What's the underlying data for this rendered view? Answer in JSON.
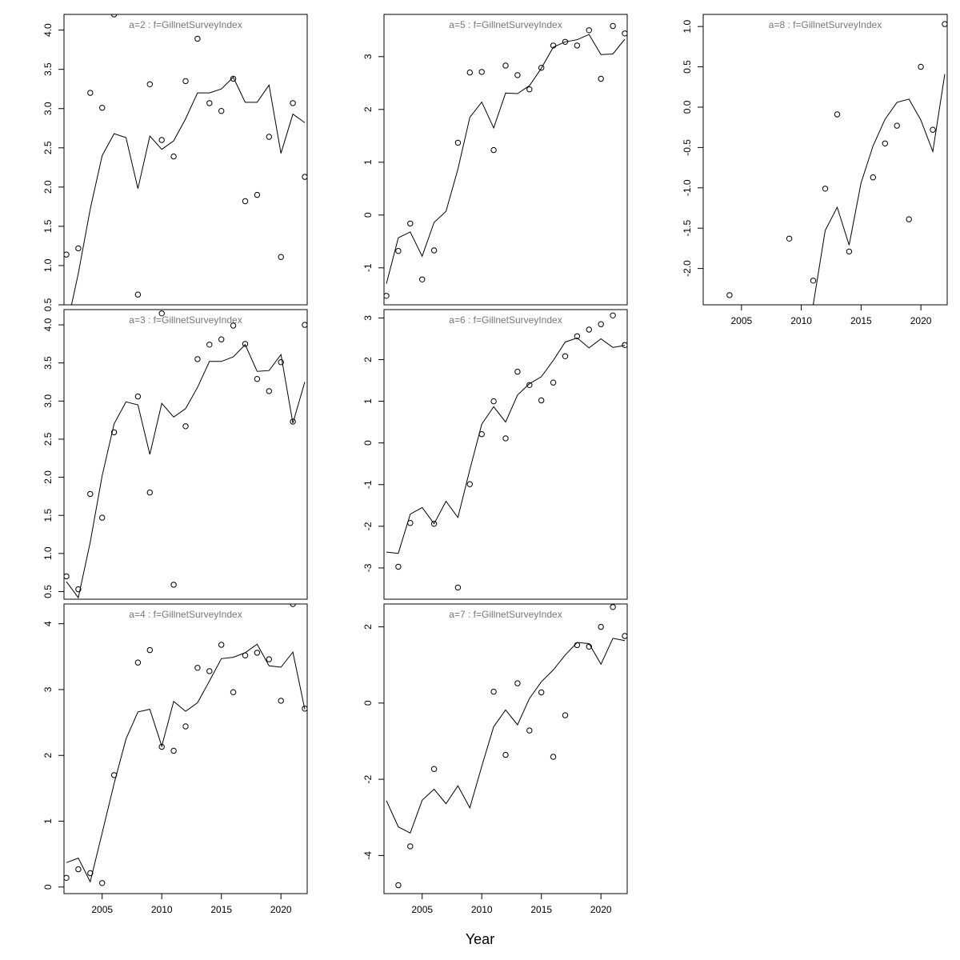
{
  "figure": {
    "xlabel": "Year"
  },
  "chart_data": [
    {
      "type": "line",
      "title": "a=2  :  f=GillnetSurveyIndex",
      "xlabel": "",
      "ylabel": "",
      "xlim": [
        2002,
        2022
      ],
      "ylim": [
        0.5,
        4.2
      ],
      "xticks": [],
      "yticks": [
        0.5,
        1.0,
        1.5,
        2.0,
        2.5,
        3.0,
        3.5,
        4.0
      ],
      "series": [
        {
          "name": "",
          "style": "line",
          "x": [
            2002,
            2003,
            2004,
            2005,
            2006,
            2007,
            2008,
            2009,
            2010,
            2011,
            2012,
            2013,
            2014,
            2015,
            2016,
            2017,
            2018,
            2019,
            2020,
            2021,
            2022
          ],
          "y": [
            0.2,
            0.9,
            1.72,
            2.4,
            2.68,
            2.63,
            1.98,
            2.65,
            2.48,
            2.59,
            2.87,
            3.2,
            3.2,
            3.25,
            3.4,
            3.08,
            3.08,
            3.3,
            2.43,
            2.93,
            2.82
          ]
        },
        {
          "name": "",
          "style": "points",
          "x": [
            2002,
            2003,
            2004,
            2005,
            2006,
            2008,
            2009,
            2010,
            2011,
            2012,
            2013,
            2014,
            2015,
            2016,
            2017,
            2018,
            2019,
            2020,
            2021,
            2022
          ],
          "y": [
            1.14,
            1.22,
            3.2,
            3.01,
            4.2,
            0.63,
            3.31,
            2.6,
            2.39,
            3.35,
            3.89,
            3.07,
            2.97,
            3.38,
            1.82,
            1.9,
            2.64,
            1.11,
            3.07,
            2.13
          ]
        }
      ]
    },
    {
      "type": "line",
      "title": "a=3  :  f=GillnetSurveyIndex",
      "xlabel": "",
      "ylabel": "",
      "xlim": [
        2002,
        2022
      ],
      "ylim": [
        0.4,
        4.2
      ],
      "xticks": [],
      "yticks": [
        0.5,
        1.0,
        1.5,
        2.0,
        2.5,
        3.0,
        3.5,
        4.0
      ],
      "series": [
        {
          "name": "",
          "style": "line",
          "x": [
            2002,
            2003,
            2004,
            2005,
            2006,
            2007,
            2008,
            2009,
            2010,
            2011,
            2012,
            2013,
            2014,
            2015,
            2016,
            2017,
            2018,
            2019,
            2020,
            2021,
            2022
          ],
          "y": [
            0.63,
            0.42,
            1.15,
            2.02,
            2.7,
            2.99,
            2.95,
            2.3,
            2.97,
            2.79,
            2.9,
            3.18,
            3.52,
            3.52,
            3.58,
            3.74,
            3.39,
            3.4,
            3.61,
            2.71,
            3.25
          ]
        },
        {
          "name": "",
          "style": "points",
          "x": [
            2002,
            2003,
            2004,
            2005,
            2006,
            2008,
            2009,
            2010,
            2011,
            2012,
            2013,
            2014,
            2015,
            2016,
            2017,
            2018,
            2019,
            2020,
            2021,
            2022
          ],
          "y": [
            0.7,
            0.53,
            1.78,
            1.47,
            2.59,
            3.06,
            1.8,
            4.15,
            0.59,
            2.67,
            3.55,
            3.74,
            3.81,
            3.99,
            3.75,
            3.29,
            3.13,
            3.51,
            2.73,
            4.0
          ]
        }
      ]
    },
    {
      "type": "line",
      "title": "a=4  :  f=GillnetSurveyIndex",
      "xlabel": "",
      "ylabel": "",
      "xlim": [
        2002,
        2022
      ],
      "ylim": [
        -0.1,
        4.3
      ],
      "xticks": [
        2005,
        2010,
        2015,
        2020
      ],
      "yticks": [
        0,
        1,
        2,
        3,
        4
      ],
      "series": [
        {
          "name": "",
          "style": "line",
          "x": [
            2002,
            2003,
            2004,
            2005,
            2006,
            2007,
            2008,
            2009,
            2010,
            2011,
            2012,
            2013,
            2014,
            2015,
            2016,
            2017,
            2018,
            2019,
            2020,
            2021,
            2022
          ],
          "y": [
            0.37,
            0.44,
            0.08,
            0.82,
            1.57,
            2.25,
            2.66,
            2.7,
            2.14,
            2.82,
            2.67,
            2.8,
            3.13,
            3.47,
            3.49,
            3.56,
            3.69,
            3.36,
            3.34,
            3.57,
            2.7
          ]
        },
        {
          "name": "",
          "style": "points",
          "x": [
            2002,
            2003,
            2004,
            2005,
            2006,
            2008,
            2009,
            2010,
            2011,
            2012,
            2013,
            2014,
            2015,
            2016,
            2017,
            2018,
            2019,
            2020,
            2021,
            2022
          ],
          "y": [
            0.14,
            0.27,
            0.21,
            0.06,
            1.7,
            3.41,
            3.6,
            2.13,
            2.07,
            2.44,
            3.33,
            3.28,
            3.68,
            2.96,
            3.52,
            3.56,
            3.46,
            2.83,
            4.3,
            2.71
          ]
        }
      ]
    },
    {
      "type": "line",
      "title": "a=5  :  f=GillnetSurveyIndex",
      "xlabel": "",
      "ylabel": "",
      "xlim": [
        2002,
        2022
      ],
      "ylim": [
        -1.7,
        3.8
      ],
      "xticks": [],
      "yticks": [
        -1,
        0,
        1,
        2,
        3
      ],
      "series": [
        {
          "name": "",
          "style": "line",
          "x": [
            2002,
            2003,
            2004,
            2005,
            2006,
            2007,
            2008,
            2009,
            2010,
            2011,
            2012,
            2013,
            2014,
            2015,
            2016,
            2017,
            2018,
            2019,
            2020,
            2021,
            2022
          ],
          "y": [
            -1.3,
            -0.43,
            -0.32,
            -0.78,
            -0.14,
            0.07,
            0.87,
            1.85,
            2.14,
            1.65,
            2.31,
            2.3,
            2.45,
            2.78,
            3.18,
            3.28,
            3.32,
            3.42,
            3.04,
            3.05,
            3.33
          ]
        },
        {
          "name": "",
          "style": "points",
          "x": [
            2002,
            2003,
            2004,
            2005,
            2006,
            2008,
            2009,
            2010,
            2011,
            2012,
            2013,
            2014,
            2015,
            2016,
            2017,
            2018,
            2019,
            2020,
            2021,
            2022
          ],
          "y": [
            -1.53,
            -0.68,
            -0.16,
            -1.22,
            -0.67,
            1.37,
            2.7,
            2.71,
            1.23,
            2.83,
            2.65,
            2.38,
            2.79,
            3.21,
            3.28,
            3.21,
            3.5,
            2.58,
            3.58,
            3.44
          ]
        }
      ]
    },
    {
      "type": "line",
      "title": "a=6  :  f=GillnetSurveyIndex",
      "xlabel": "",
      "ylabel": "",
      "xlim": [
        2002,
        2022
      ],
      "ylim": [
        -3.75,
        3.2
      ],
      "xticks": [],
      "yticks": [
        -3,
        -2,
        -1,
        0,
        1,
        2,
        3
      ],
      "series": [
        {
          "name": "",
          "style": "line",
          "x": [
            2002,
            2003,
            2004,
            2005,
            2006,
            2007,
            2008,
            2009,
            2010,
            2011,
            2012,
            2013,
            2014,
            2015,
            2016,
            2017,
            2018,
            2019,
            2020,
            2021,
            2022
          ],
          "y": [
            -2.62,
            -2.65,
            -1.71,
            -1.55,
            -1.94,
            -1.4,
            -1.79,
            -0.64,
            0.45,
            0.87,
            0.5,
            1.15,
            1.42,
            1.59,
            1.98,
            2.42,
            2.52,
            2.28,
            2.5,
            2.29,
            2.34
          ]
        },
        {
          "name": "",
          "style": "points",
          "x": [
            2003,
            2004,
            2006,
            2008,
            2009,
            2010,
            2011,
            2012,
            2013,
            2014,
            2015,
            2016,
            2017,
            2018,
            2019,
            2020,
            2021,
            2022
          ],
          "y": [
            -2.97,
            -1.92,
            -1.94,
            -3.47,
            -0.99,
            0.21,
            1.0,
            0.11,
            1.71,
            1.39,
            1.02,
            1.45,
            2.08,
            2.56,
            2.72,
            2.85,
            3.06,
            2.35
          ]
        }
      ]
    },
    {
      "type": "line",
      "title": "a=7  :  f=GillnetSurveyIndex",
      "xlabel": "",
      "ylabel": "",
      "xlim": [
        2002,
        2022
      ],
      "ylim": [
        -5.0,
        2.6
      ],
      "xticks": [
        2005,
        2010,
        2015,
        2020
      ],
      "yticks": [
        -4,
        -2,
        0,
        2
      ],
      "series": [
        {
          "name": "",
          "style": "line",
          "x": [
            2002,
            2003,
            2004,
            2005,
            2006,
            2007,
            2008,
            2009,
            2010,
            2011,
            2012,
            2013,
            2014,
            2015,
            2016,
            2017,
            2018,
            2019,
            2020,
            2021,
            2022
          ],
          "y": [
            -2.56,
            -3.25,
            -3.41,
            -2.55,
            -2.26,
            -2.64,
            -2.17,
            -2.75,
            -1.66,
            -0.62,
            -0.18,
            -0.57,
            0.12,
            0.56,
            0.87,
            1.26,
            1.59,
            1.56,
            1.02,
            1.7,
            1.64
          ]
        },
        {
          "name": "",
          "style": "points",
          "x": [
            2003,
            2004,
            2006,
            2011,
            2012,
            2013,
            2014,
            2015,
            2016,
            2017,
            2018,
            2019,
            2020,
            2021,
            2022
          ],
          "y": [
            -4.78,
            -3.76,
            -1.73,
            0.3,
            -1.36,
            0.52,
            -0.72,
            0.28,
            -1.41,
            -0.32,
            1.52,
            1.48,
            2.0,
            2.52,
            1.76
          ]
        }
      ]
    },
    {
      "type": "line",
      "title": "a=8  :  f=GillnetSurveyIndex",
      "xlabel": "",
      "ylabel": "",
      "xlim": [
        2002,
        2022
      ],
      "ylim": [
        -2.45,
        1.15
      ],
      "xticks": [
        2005,
        2010,
        2015,
        2020
      ],
      "yticks": [
        -2.0,
        -1.5,
        -1.0,
        -0.5,
        0.0,
        0.5,
        1.0
      ],
      "series": [
        {
          "name": "",
          "style": "line",
          "x": [
            2011,
            2012,
            2013,
            2014,
            2015,
            2016,
            2017,
            2018,
            2019,
            2020,
            2021,
            2022
          ],
          "y": [
            -2.45,
            -1.53,
            -1.24,
            -1.71,
            -0.94,
            -0.48,
            -0.15,
            0.06,
            0.1,
            -0.16,
            -0.55,
            0.41
          ]
        },
        {
          "name": "",
          "style": "points",
          "x": [
            2004,
            2009,
            2011,
            2012,
            2013,
            2014,
            2016,
            2017,
            2018,
            2019,
            2020,
            2021,
            2022
          ],
          "y": [
            -2.33,
            -1.63,
            -2.15,
            -1.01,
            -0.09,
            -1.79,
            -0.87,
            -0.45,
            -0.23,
            -1.39,
            0.5,
            -0.28,
            1.03
          ]
        }
      ]
    }
  ]
}
